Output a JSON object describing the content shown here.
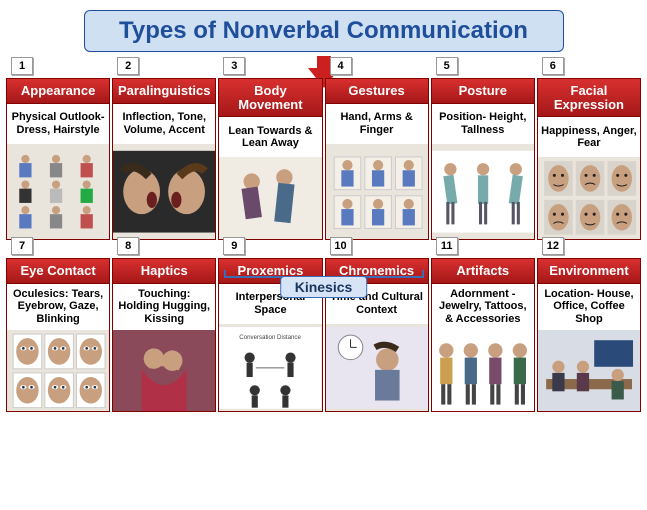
{
  "title": "Types of Nonverbal Communication",
  "title_style": {
    "bg": "#cfe0f3",
    "border": "#1f4e9b",
    "color": "#1f4e9b",
    "fontsize": 24
  },
  "arrow_color": "#cc2020",
  "header_bg": "#c42020",
  "header_gradient_top": "#d93030",
  "header_gradient_bottom": "#a51818",
  "card_border": "#800000",
  "kinesics": {
    "label": "Kinesics",
    "bg": "#d6e4f5",
    "border": "#3a6db5",
    "color": "#17365d",
    "fontsize": 14
  },
  "head_fontsize": 13,
  "desc_fontsize": 11,
  "num_fontsize": 11,
  "cards": [
    {
      "num": "1",
      "title": "Appearance",
      "desc": "Physical Outlook- Dress, Hairstyle",
      "img": "people-grid"
    },
    {
      "num": "2",
      "title": "Paralinguistics",
      "desc": "Inflection, Tone, Volume, Accent",
      "img": "two-faces-yell"
    },
    {
      "num": "3",
      "title": "Body Movement",
      "desc": "Lean Towards & Lean Away",
      "img": "couple-lean"
    },
    {
      "num": "4",
      "title": "Gestures",
      "desc": "Hand, Arms & Finger",
      "img": "hand-grid"
    },
    {
      "num": "5",
      "title": "Posture",
      "desc": "Position- Height, Tallness",
      "img": "posture-silhouettes"
    },
    {
      "num": "6",
      "title": "Facial Expression",
      "desc": "Happiness, Anger, Fear",
      "img": "face-grid"
    },
    {
      "num": "7",
      "title": "Eye Contact",
      "desc": "Oculesics: Tears, Eyebrow, Gaze, Blinking",
      "img": "eye-grid"
    },
    {
      "num": "8",
      "title": "Haptics",
      "desc": "Touching: Holding Hugging, Kissing",
      "img": "hugging"
    },
    {
      "num": "9",
      "title": "Proxemics",
      "desc": "Interpersonal Space",
      "img": "distance-diagram"
    },
    {
      "num": "10",
      "title": "Chronemics",
      "desc": "Time and Cultural Context",
      "img": "clock-person"
    },
    {
      "num": "11",
      "title": "Artifacts",
      "desc": "Adornment - Jewelry, Tattoos, & Accessories",
      "img": "figures-row"
    },
    {
      "num": "12",
      "title": "Environment",
      "desc": "Location- House, Office, Coffee Shop",
      "img": "meeting-room"
    }
  ]
}
